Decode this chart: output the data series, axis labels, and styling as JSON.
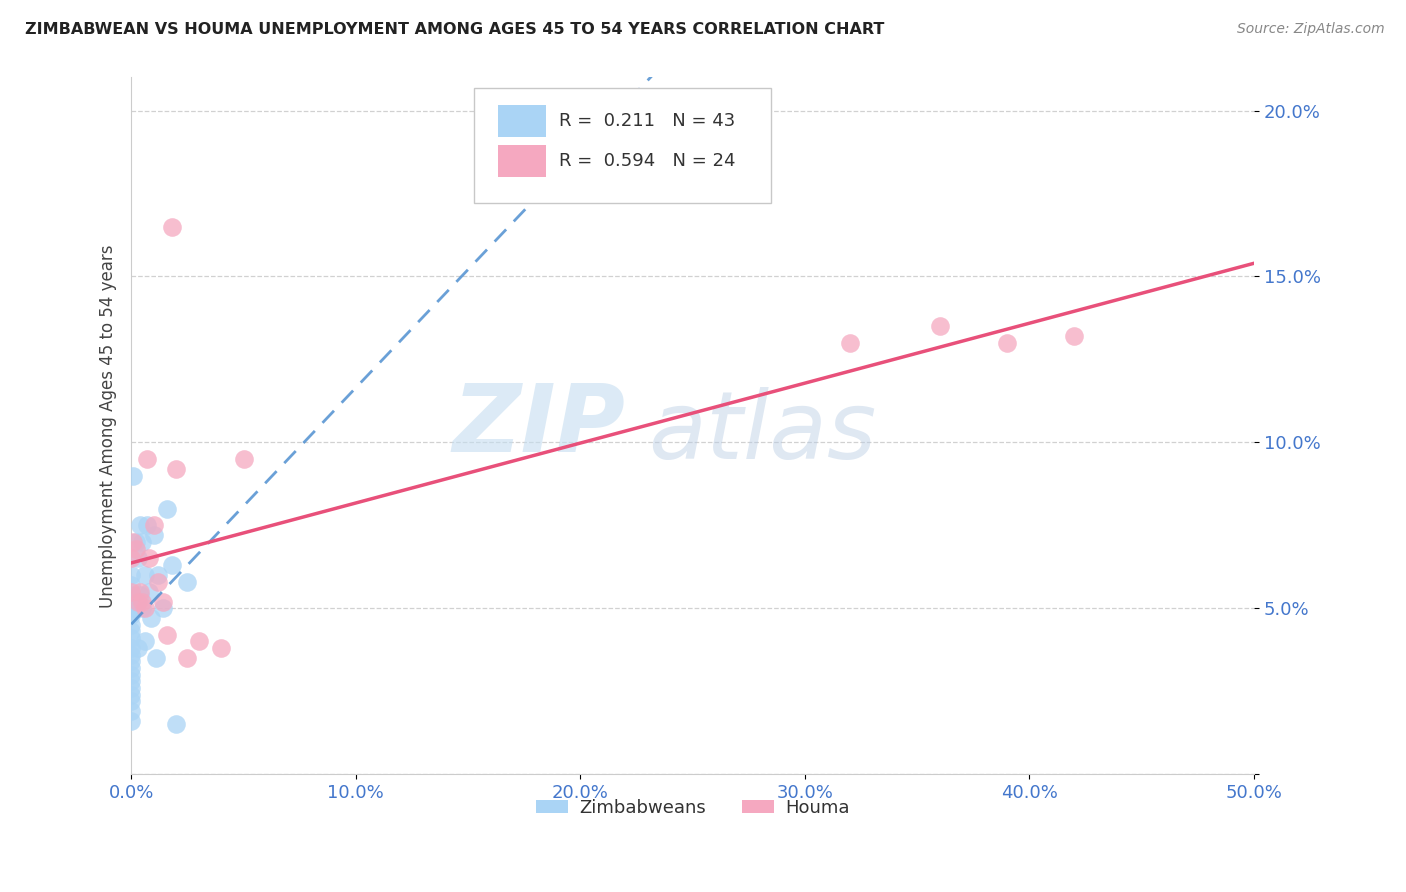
{
  "title": "ZIMBABWEAN VS HOUMA UNEMPLOYMENT AMONG AGES 45 TO 54 YEARS CORRELATION CHART",
  "source": "Source: ZipAtlas.com",
  "ylabel": "Unemployment Among Ages 45 to 54 years",
  "xlim": [
    0.0,
    0.5
  ],
  "ylim": [
    0.0,
    0.21
  ],
  "xticks": [
    0.0,
    0.1,
    0.2,
    0.3,
    0.4,
    0.5
  ],
  "yticks": [
    0.0,
    0.05,
    0.1,
    0.15,
    0.2
  ],
  "xticklabels": [
    "0.0%",
    "10.0%",
    "20.0%",
    "30.0%",
    "40.0%",
    "50.0%"
  ],
  "yticklabels": [
    "",
    "5.0%",
    "10.0%",
    "15.0%",
    "20.0%"
  ],
  "legend_labels": [
    "Zimbabweans",
    "Houma"
  ],
  "r_zimbabwean": "0.211",
  "n_zimbabwean": "43",
  "r_houma": "0.594",
  "n_houma": "24",
  "color_zimbabwean": "#aad4f5",
  "color_houma": "#f5a8c0",
  "line_color_zimbabwean": "#5090d0",
  "line_color_houma": "#e8507a",
  "background_color": "#ffffff",
  "watermark_color": "#d0e4f5",
  "zimbabwean_x": [
    0.0,
    0.0,
    0.0,
    0.0,
    0.0,
    0.0,
    0.0,
    0.0,
    0.0,
    0.0,
    0.0,
    0.0,
    0.0,
    0.0,
    0.0,
    0.0,
    0.0,
    0.0,
    0.0,
    0.0,
    0.001,
    0.001,
    0.002,
    0.002,
    0.003,
    0.003,
    0.004,
    0.004,
    0.005,
    0.005,
    0.006,
    0.006,
    0.007,
    0.008,
    0.009,
    0.01,
    0.011,
    0.012,
    0.014,
    0.016,
    0.018,
    0.02,
    0.025
  ],
  "zimbabwean_y": [
    0.06,
    0.057,
    0.054,
    0.052,
    0.05,
    0.048,
    0.045,
    0.043,
    0.041,
    0.038,
    0.036,
    0.034,
    0.032,
    0.03,
    0.028,
    0.026,
    0.024,
    0.022,
    0.019,
    0.016,
    0.09,
    0.052,
    0.07,
    0.05,
    0.065,
    0.038,
    0.075,
    0.054,
    0.07,
    0.05,
    0.06,
    0.04,
    0.075,
    0.055,
    0.047,
    0.072,
    0.035,
    0.06,
    0.05,
    0.08,
    0.063,
    0.015,
    0.058
  ],
  "houma_x": [
    0.0,
    0.0,
    0.001,
    0.002,
    0.003,
    0.004,
    0.005,
    0.006,
    0.007,
    0.008,
    0.01,
    0.012,
    0.014,
    0.016,
    0.018,
    0.02,
    0.025,
    0.03,
    0.04,
    0.05,
    0.32,
    0.36,
    0.39,
    0.42
  ],
  "houma_y": [
    0.065,
    0.055,
    0.07,
    0.068,
    0.052,
    0.055,
    0.052,
    0.05,
    0.095,
    0.065,
    0.075,
    0.058,
    0.052,
    0.042,
    0.165,
    0.092,
    0.035,
    0.04,
    0.038,
    0.095,
    0.13,
    0.135,
    0.13,
    0.132
  ]
}
